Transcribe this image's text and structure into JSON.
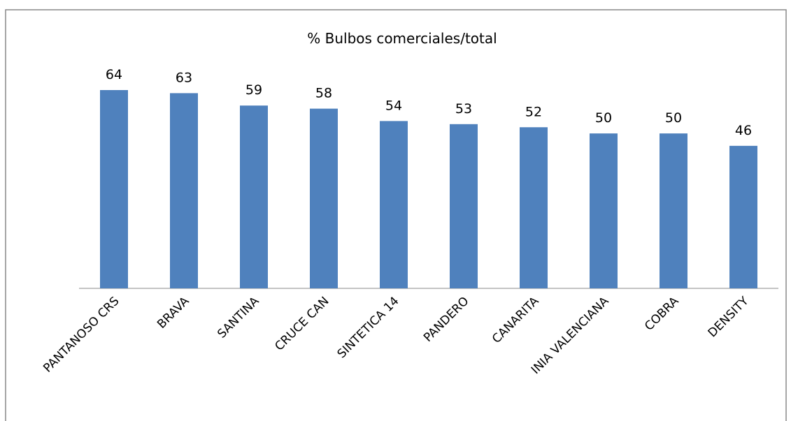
{
  "chart_data": {
    "type": "bar",
    "title": "% Bulbos comerciales/total",
    "categories": [
      "PANTANOSO CRS",
      "BRAVA",
      "SANTINA",
      "CRUCE CAN",
      "SINTETICA 14",
      "PANDERO",
      "CANARITA",
      "INIA VALENCIANA",
      "COBRA",
      "DENSITY"
    ],
    "values": [
      64,
      63,
      59,
      58,
      54,
      53,
      52,
      50,
      50,
      46
    ],
    "color": "#4f81bd"
  }
}
